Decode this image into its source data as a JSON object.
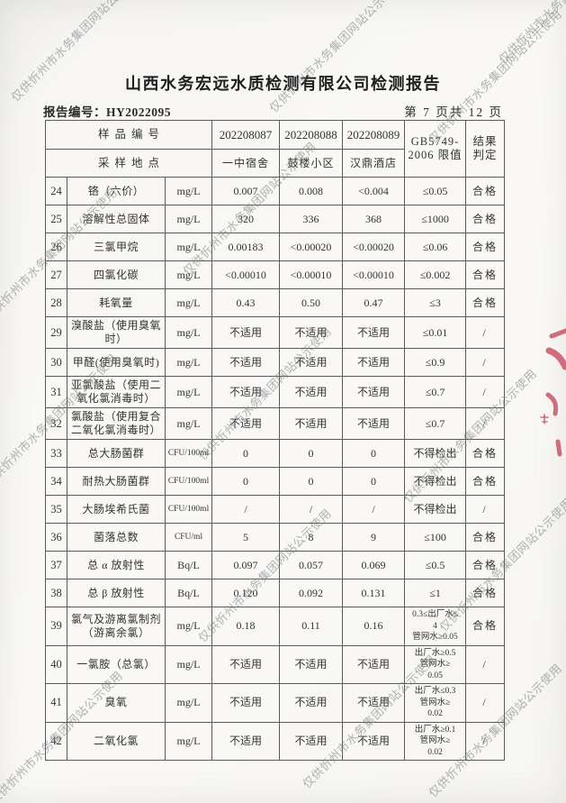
{
  "page": {
    "title": "山西水务宏远水质检测有限公司检测报告",
    "report_no": "报告编号：HY2022095",
    "page_info": "第 7 页共 12 页",
    "watermark_text": "仅供忻州市水务集团网站公示使用",
    "stamp_color": "#c84a60",
    "accent_text_color": "#333333"
  },
  "table": {
    "header": {
      "sample_id_label": "样品编号",
      "sample_ids": [
        "202208087",
        "202208088",
        "202208089"
      ],
      "location_label": "采样地点",
      "locations": [
        "一中宿舍",
        "鼓楼小区",
        "汉鼎酒店"
      ],
      "limit_label": "GB5749-\n2006 限值",
      "result_label": "结果\n判定"
    },
    "rows": [
      {
        "no": "24",
        "name": "铬（六价）",
        "unit": "mg/L",
        "values": [
          "0.007",
          "0.008",
          "<0.004"
        ],
        "limit": "≤0.05",
        "result": "合格"
      },
      {
        "no": "25",
        "name": "溶解性总固体",
        "unit": "mg/L",
        "values": [
          "320",
          "336",
          "368"
        ],
        "limit": "≤1000",
        "result": "合格"
      },
      {
        "no": "26",
        "name": "三氯甲烷",
        "unit": "mg/L",
        "values": [
          "0.00183",
          "<0.00020",
          "<0.00020"
        ],
        "limit": "≤0.06",
        "result": "合格"
      },
      {
        "no": "27",
        "name": "四氯化碳",
        "unit": "mg/L",
        "values": [
          "<0.00010",
          "<0.00010",
          "<0.00010"
        ],
        "limit": "≤0.002",
        "result": "合格"
      },
      {
        "no": "28",
        "name": "耗氧量",
        "unit": "mg/L",
        "values": [
          "0.43",
          "0.50",
          "0.47"
        ],
        "limit": "≤3",
        "result": "合格"
      },
      {
        "no": "29",
        "name": "溴酸盐（使用臭氧时）",
        "unit": "mg/L",
        "values": [
          "不适用",
          "不适用",
          "不适用"
        ],
        "limit": "≤0.01",
        "result": "/"
      },
      {
        "no": "30",
        "name": "甲醛(使用臭氧时)",
        "unit": "mg/L",
        "values": [
          "不适用",
          "不适用",
          "不适用"
        ],
        "limit": "≤0.9",
        "result": "/"
      },
      {
        "no": "31",
        "name": "亚氯酸盐（使用二氧化氯消毒时）",
        "unit": "mg/L",
        "values": [
          "不适用",
          "不适用",
          "不适用"
        ],
        "limit": "≤0.7",
        "result": "/"
      },
      {
        "no": "32",
        "name": "氯酸盐（使用复合二氧化氯消毒时）",
        "unit": "mg/L",
        "values": [
          "不适用",
          "不适用",
          "不适用"
        ],
        "limit": "≤0.7",
        "result": "/"
      },
      {
        "no": "33",
        "name": "总大肠菌群",
        "unit": "CFU/100ml",
        "values": [
          "0",
          "0",
          "0"
        ],
        "limit": "不得检出",
        "result": "合格"
      },
      {
        "no": "34",
        "name": "耐热大肠菌群",
        "unit": "CFU/100ml",
        "values": [
          "0",
          "0",
          "0"
        ],
        "limit": "不得检出",
        "result": "合格"
      },
      {
        "no": "35",
        "name": "大肠埃希氏菌",
        "unit": "CFU/100ml",
        "values": [
          "/",
          "/",
          "/"
        ],
        "limit": "不得检出",
        "result": "/"
      },
      {
        "no": "36",
        "name": "菌落总数",
        "unit": "CFU/ml",
        "values": [
          "5",
          "8",
          "9"
        ],
        "limit": "≤100",
        "result": "合格"
      },
      {
        "no": "37",
        "name": "总 α 放射性",
        "unit": "Bq/L",
        "values": [
          "0.097",
          "0.057",
          "0.069"
        ],
        "limit": "≤0.5",
        "result": "合格"
      },
      {
        "no": "38",
        "name": "总 β 放射性",
        "unit": "Bq/L",
        "values": [
          "0.120",
          "0.092",
          "0.131"
        ],
        "limit": "≤1",
        "result": "合格"
      },
      {
        "no": "39",
        "name": "氯气及游离氯制剂（游离余氯）",
        "unit": "mg/L",
        "values": [
          "0.18",
          "0.11",
          "0.16"
        ],
        "limit": "0.3≤出厂水≤\n4\n管网水≥0.05",
        "result": "合格"
      },
      {
        "no": "40",
        "name": "一氯胺（总氯）",
        "unit": "mg/L",
        "values": [
          "不适用",
          "不适用",
          "不适用"
        ],
        "limit": "出厂水≥0.5\n管网水≥\n0.05",
        "result": "/"
      },
      {
        "no": "41",
        "name": "臭氧",
        "unit": "mg/L",
        "values": [
          "不适用",
          "不适用",
          "不适用"
        ],
        "limit": "出厂水≤0.3\n管网水≥\n0.02",
        "result": "/"
      },
      {
        "no": "42",
        "name": "二氧化氯",
        "unit": "mg/L",
        "values": [
          "不适用",
          "不适用",
          "不适用"
        ],
        "limit": "出厂水≥0.1\n管网水≥\n0.02",
        "result": "/"
      }
    ]
  }
}
